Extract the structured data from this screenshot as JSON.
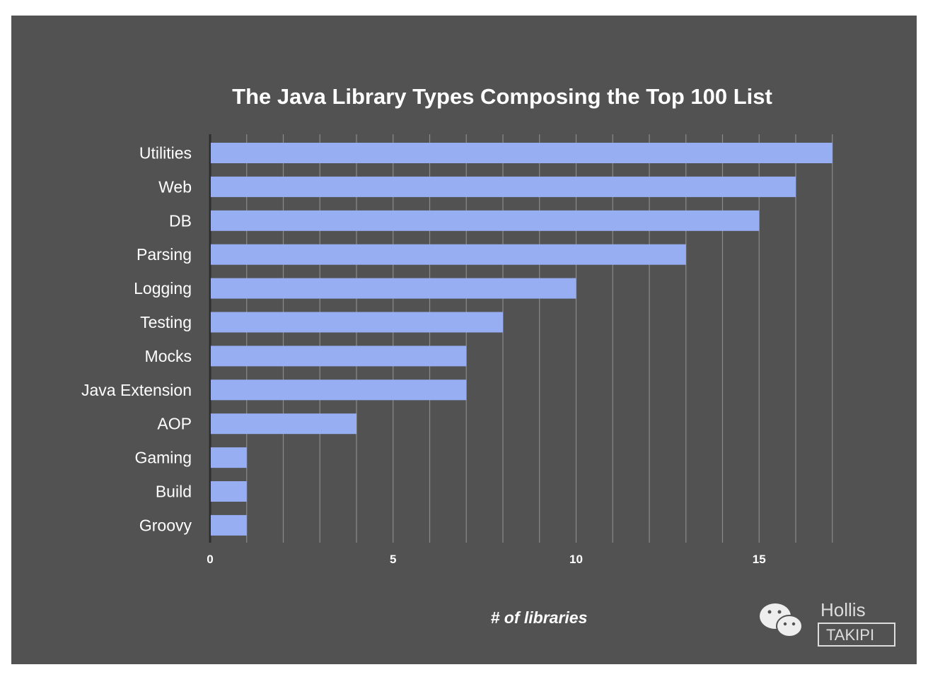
{
  "chart_data": {
    "type": "bar",
    "orientation": "horizontal",
    "title": "The Java Library Types Composing the Top 100 List",
    "xlabel": "# of libraries",
    "ylabel": "",
    "categories": [
      "Utilities",
      "Web",
      "DB",
      "Parsing",
      "Logging",
      "Testing",
      "Mocks",
      "Java Extension",
      "AOP",
      "Gaming",
      "Build",
      "Groovy"
    ],
    "values": [
      17,
      16,
      15,
      13,
      10,
      8,
      7,
      7,
      4,
      1,
      1,
      1
    ],
    "xlim": [
      0,
      17
    ],
    "xticks": [
      0,
      5,
      10,
      15
    ],
    "grid": true,
    "gridstep": 1,
    "legend": "none",
    "colors": {
      "bar": "#97aef2",
      "background": "#525252",
      "grid": "#8a8a8a",
      "axis": "#2e2e2e"
    }
  },
  "watermark": {
    "line1": "Hollis",
    "line2": "TAKIPI",
    "icon": "wechat-icon"
  }
}
